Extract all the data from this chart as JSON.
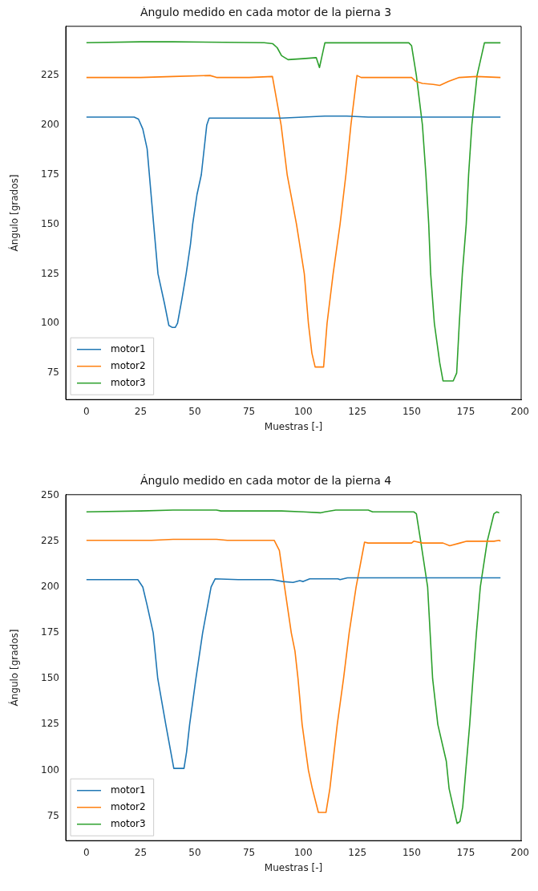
{
  "chart_data": [
    {
      "type": "line",
      "title": "Ángulo medido en cada motor de la pierna 3",
      "xlabel": "Muestras [-]",
      "ylabel": "Ángulo [grados]",
      "xlim": [
        -9.55,
        200.55
      ],
      "ylim": [
        61.6,
        249.8
      ],
      "xticks": [
        0,
        25,
        50,
        75,
        100,
        125,
        150,
        175,
        200
      ],
      "yticks": [
        75,
        100,
        125,
        150,
        175,
        200,
        225
      ],
      "legend": "bottom left",
      "grid": false,
      "marker": "none",
      "line_style": "solid",
      "series": [
        {
          "name": "motor1",
          "color": "#1f77b4",
          "x": [
            0,
            10,
            22,
            24,
            26,
            28,
            31,
            33,
            36,
            38,
            39.5,
            41,
            42,
            44,
            46,
            48,
            49,
            51,
            53,
            55.5,
            56.6,
            60,
            90,
            100,
            110,
            120,
            130,
            150,
            170,
            191
          ],
          "values": [
            204,
            204,
            204,
            203,
            198,
            188,
            150,
            125,
            110,
            99,
            98,
            98,
            100,
            112,
            125,
            140,
            150,
            165,
            175,
            200,
            203.5,
            203.5,
            203.5,
            204,
            204.5,
            204.5,
            204,
            204,
            204,
            204
          ]
        },
        {
          "name": "motor2",
          "color": "#ff7f0e",
          "x": [
            0,
            25,
            40,
            57,
            60,
            75,
            85.8,
            89.8,
            92.6,
            96.9,
            100.5,
            102.4,
            104,
            105.5,
            109.4,
            111,
            113.8,
            117,
            119.7,
            122,
            124.8,
            126.7,
            150,
            152,
            155,
            160,
            163,
            167,
            172,
            180,
            191
          ],
          "values": [
            224,
            224,
            224.5,
            225,
            224,
            224,
            224.5,
            200,
            175,
            150,
            125,
            100,
            85,
            78,
            78,
            100,
            125,
            150,
            175,
            200,
            225,
            224,
            224,
            222,
            221,
            220.5,
            220,
            222,
            224,
            224.5,
            224
          ]
        },
        {
          "name": "motor3",
          "color": "#2ca02c",
          "x": [
            0,
            25,
            40,
            82,
            86,
            88,
            90,
            93,
            100,
            106,
            107.5,
            108.5,
            110,
            148.7,
            150,
            152.2,
            155,
            156.6,
            157.9,
            158.8,
            160.5,
            163,
            164.5,
            169.2,
            170.8,
            172,
            173.4,
            175.2,
            176.3,
            177.8,
            180.2,
            183.6,
            191
          ],
          "values": [
            241.5,
            242,
            242,
            241.5,
            241,
            239,
            235,
            233,
            233.5,
            234,
            229,
            234,
            241.5,
            241.5,
            240,
            225,
            200,
            175,
            150,
            125,
            100,
            80,
            71,
            71,
            75,
            100,
            125,
            150,
            175,
            200,
            225,
            241.5,
            241.5
          ]
        }
      ]
    },
    {
      "type": "line",
      "title": "Ángulo medido en cada motor de la pierna 4",
      "xlabel": "Muestras [-]",
      "ylabel": "Ángulo [grados]",
      "xlim": [
        -9.55,
        200.55
      ],
      "ylim": [
        61.6,
        250.4
      ],
      "xticks": [
        0,
        25,
        50,
        75,
        100,
        125,
        150,
        175,
        200
      ],
      "yticks": [
        75,
        100,
        125,
        150,
        175,
        200,
        225,
        250
      ],
      "legend": "bottom left",
      "grid": false,
      "marker": "none",
      "line_style": "solid",
      "series": [
        {
          "name": "motor1",
          "color": "#1f77b4",
          "x": [
            0,
            23.7,
            26,
            28,
            30.8,
            32.9,
            36.6,
            40.3,
            45,
            46.2,
            47.6,
            50.5,
            53.6,
            57.5,
            59.4,
            70,
            85.8,
            90.6,
            95.3,
            98.4,
            100,
            103,
            116,
            117,
            120.4,
            150,
            191
          ],
          "values": [
            204,
            204,
            200,
            190,
            175,
            150,
            125,
            101,
            101,
            110,
            125,
            150,
            175,
            200,
            204.5,
            204,
            204,
            203,
            202.5,
            203.5,
            203,
            204.5,
            204.5,
            204,
            205,
            205,
            205
          ]
        },
        {
          "name": "motor2",
          "color": "#ff7f0e",
          "x": [
            0,
            30,
            40,
            60,
            65,
            86.6,
            89,
            91.4,
            94.5,
            96.2,
            97.6,
            99.5,
            102.4,
            104.2,
            107,
            110.5,
            112.3,
            115.7,
            118.6,
            121.2,
            124.4,
            128.3,
            129.9,
            150,
            151,
            155,
            164.5,
            167.6,
            172.3,
            175.5,
            188,
            190.4,
            191
          ],
          "values": [
            225.5,
            225.5,
            226,
            226,
            225.5,
            225.5,
            220,
            200,
            175,
            165,
            150,
            125,
            100,
            90,
            77,
            77,
            90,
            125,
            150,
            175,
            200,
            224.5,
            224,
            224,
            225,
            224,
            224,
            222.5,
            224,
            225,
            225,
            225.5,
            225
          ]
        },
        {
          "name": "motor3",
          "color": "#2ca02c",
          "x": [
            0,
            25,
            40,
            60,
            62,
            90,
            100,
            107.9,
            110,
            115,
            130,
            132,
            151,
            152.2,
            154.2,
            157.4,
            159.7,
            162.1,
            166,
            167.3,
            169.2,
            171,
            172.3,
            173.6,
            175,
            176.8,
            178.3,
            179.9,
            181.7,
            184.9,
            188,
            189.3,
            190.4
          ],
          "values": [
            241,
            241.5,
            242,
            242,
            241.5,
            241.5,
            241,
            240.5,
            241,
            242,
            242,
            241,
            241,
            240,
            225,
            200,
            150,
            125,
            105,
            90,
            80,
            71,
            72,
            80,
            100,
            125,
            150,
            175,
            200,
            225,
            240,
            241,
            240.5
          ]
        }
      ]
    }
  ]
}
